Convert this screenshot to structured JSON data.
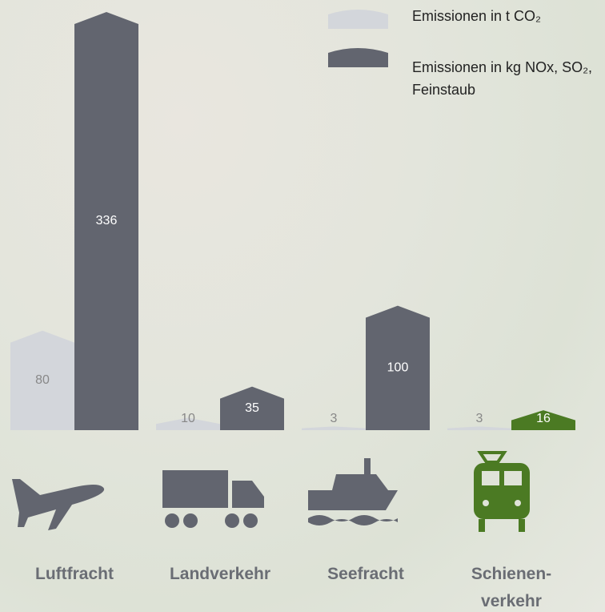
{
  "chart_data": {
    "type": "bar",
    "categories": [
      "Luftfracht",
      "Landverkehr",
      "Seefracht",
      "Schienen-verkehr"
    ],
    "series": [
      {
        "name": "Emissionen in t CO₂",
        "color": "#d3d6db",
        "values": [
          80,
          10,
          3,
          3
        ]
      },
      {
        "name": "Emissionen in kg NOx, SO₂, Feinstaub",
        "color": "#62656f",
        "colors": [
          "#62656f",
          "#62656f",
          "#62656f",
          "#4b7a23"
        ],
        "values": [
          336,
          35,
          100,
          16
        ]
      }
    ],
    "legend": "top-right"
  }
}
